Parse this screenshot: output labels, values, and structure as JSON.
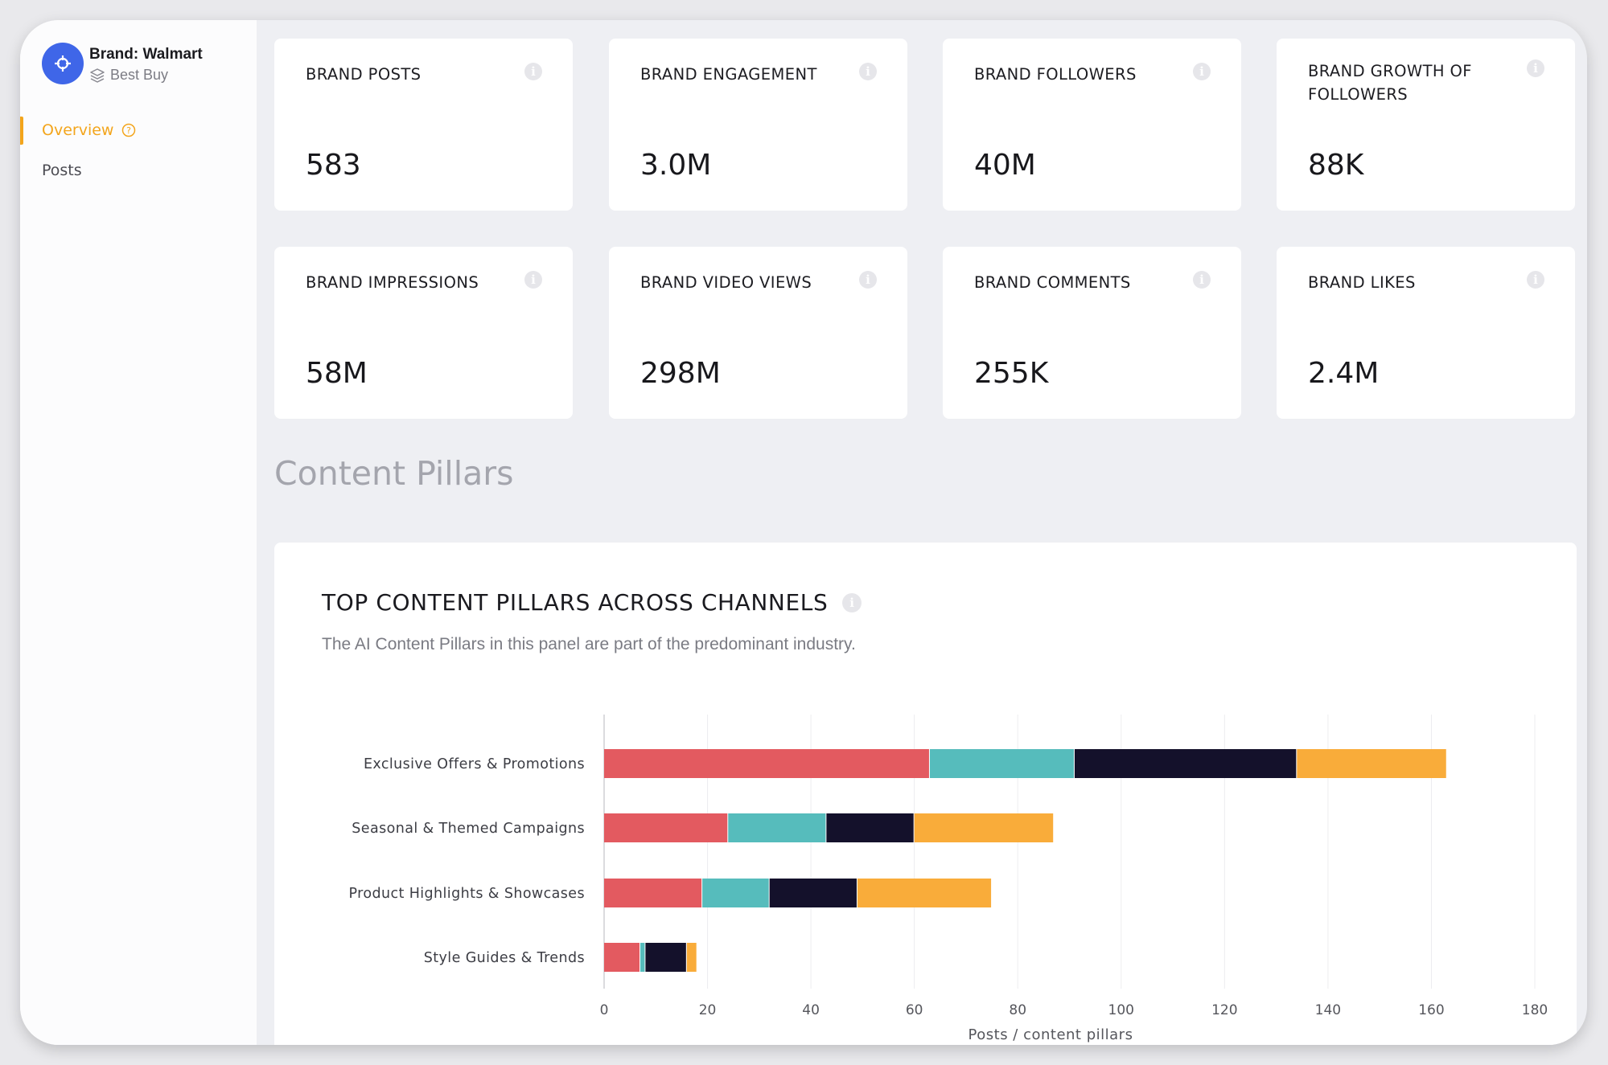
{
  "sidebar": {
    "brand_title": "Brand: Walmart",
    "brand_subtitle": "Best Buy",
    "logo_icon": "crosshair-icon",
    "nav": [
      {
        "label": "Overview",
        "active": true
      },
      {
        "label": "Posts",
        "active": false
      }
    ]
  },
  "metrics": [
    {
      "label": "BRAND POSTS",
      "value": "583"
    },
    {
      "label": "BRAND ENGAGEMENT",
      "value": "3.0M"
    },
    {
      "label": "BRAND FOLLOWERS",
      "value": "40M"
    },
    {
      "label": "BRAND GROWTH OF FOLLOWERS",
      "value": "88K"
    },
    {
      "label": "BRAND IMPRESSIONS",
      "value": "58M"
    },
    {
      "label": "BRAND VIDEO VIEWS",
      "value": "298M"
    },
    {
      "label": "BRAND COMMENTS",
      "value": "255K"
    },
    {
      "label": "BRAND LIKES",
      "value": "2.4M"
    }
  ],
  "section_title": "Content Pillars",
  "panel": {
    "title": "TOP CONTENT PILLARS ACROSS CHANNELS",
    "subtitle": "The AI Content Pillars in this panel are part of the predominant industry."
  },
  "colors": {
    "accent": "#f3a51c",
    "brand_blue": "#3f66e8",
    "series": [
      "#e35a60",
      "#56bcbc",
      "#14112b",
      "#f9ac3a"
    ]
  },
  "chart_data": {
    "type": "bar",
    "orientation": "horizontal",
    "stacked": true,
    "categories": [
      "Exclusive Offers & Promotions",
      "Seasonal & Themed Campaigns",
      "Product Highlights & Showcases",
      "Style Guides & Trends"
    ],
    "series": [
      {
        "values": [
          63,
          24,
          19,
          7
        ]
      },
      {
        "values": [
          28,
          19,
          13,
          1
        ]
      },
      {
        "values": [
          43,
          17,
          17,
          8
        ]
      },
      {
        "values": [
          29,
          27,
          26,
          2
        ]
      }
    ],
    "xlabel": "Posts / content pillars",
    "xlim": [
      0,
      180
    ],
    "xticks": [
      0,
      20,
      40,
      60,
      80,
      100,
      120,
      140,
      160,
      180
    ],
    "grid": true
  }
}
